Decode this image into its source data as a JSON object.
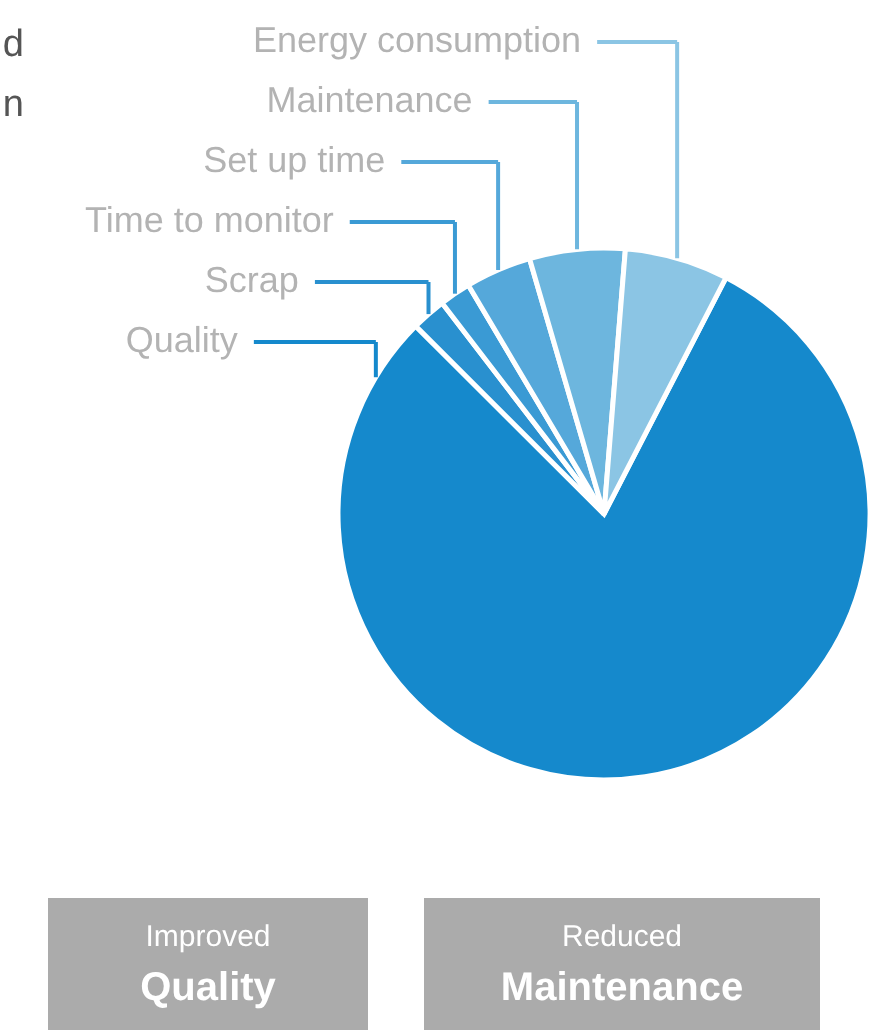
{
  "chart_data": {
    "type": "pie",
    "categories": [
      "Quality",
      "Scrap",
      "Time to monitor",
      "Set up time",
      "Maintenance",
      "Energy consumption"
    ],
    "values": [
      79.9,
      2.1,
      1.9,
      4.0,
      5.8,
      6.3
    ],
    "colors": [
      "#1589cc",
      "#2990cf",
      "#3a9ad4",
      "#55a8da",
      "#6db6de",
      "#8bc5e4"
    ],
    "annotations": [
      "d",
      "n",
      "Improved Quality",
      "Reduced Maintenance"
    ],
    "legend": "top left"
  }
}
